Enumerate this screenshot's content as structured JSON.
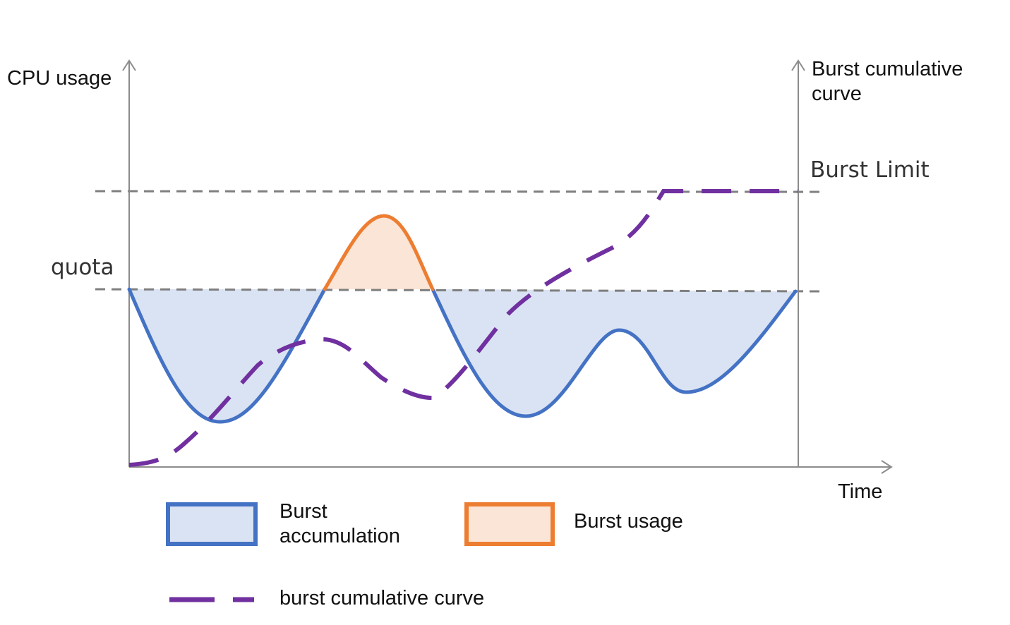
{
  "labels": {
    "y_axis_left": "CPU usage",
    "y_axis_right_line1": "Burst cumulative",
    "y_axis_right_line2": "curve",
    "x_axis": "Time",
    "quota": "quota",
    "burst_limit": "Burst Limit"
  },
  "legend": {
    "accumulation_line1": "Burst",
    "accumulation_line2": "accumulation",
    "usage": "Burst usage",
    "cumulative": "burst cumulative curve"
  },
  "colors": {
    "usage_line": "#4472c4",
    "accumulation_fill": "#dae3f3",
    "burst_line": "#ed7d31",
    "burst_fill": "#fbe5d6",
    "cumulative_line": "#7030a0",
    "guide_line": "#7f7f7f",
    "axis": "#8c8c8c"
  }
}
